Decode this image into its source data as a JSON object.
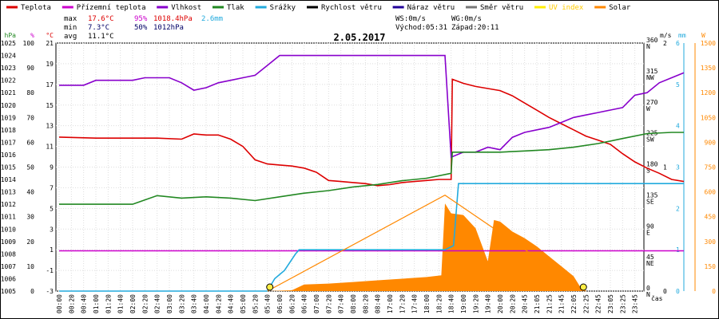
{
  "legend": [
    {
      "label": "Teplota",
      "color": "#dd0000"
    },
    {
      "label": "Přízemní teplota",
      "color": "#cc00cc"
    },
    {
      "label": "Vlhkost",
      "color": "#8800cc"
    },
    {
      "label": "Tlak",
      "color": "#228822"
    },
    {
      "label": "Srážky",
      "color": "#22aadd"
    },
    {
      "label": "Rychlost větru",
      "color": "#000000"
    },
    {
      "label": "Náraz větru",
      "color": "#220099"
    },
    {
      "label": "Směr větru",
      "color": "#777777"
    },
    {
      "label": "UV index",
      "color": "#ffee00"
    },
    {
      "label": "Solar",
      "color": "#ff8800"
    }
  ],
  "stats": {
    "max": {
      "label": "max",
      "temp": "17.6°C",
      "hum": "95%",
      "press": "1018.4hPa",
      "rain": "2.6mm"
    },
    "min": {
      "label": "min",
      "temp": "7.3°C",
      "hum": "50%",
      "press": "1012hPa"
    },
    "avg": {
      "label": "avg",
      "temp": "11.1°C"
    }
  },
  "wind_info": {
    "ws": "WS:0m/s",
    "wg": "WG:0m/s",
    "sunrise": "Východ:05:31",
    "sunset": "Západ:20:11"
  },
  "chart_data": {
    "type": "line",
    "title": "2.05.2017",
    "x_unit_label": "čas",
    "x_ticks": [
      "00:00",
      "00:20",
      "00:40",
      "01:00",
      "01:20",
      "01:40",
      "02:00",
      "02:20",
      "02:40",
      "03:00",
      "03:20",
      "03:40",
      "04:00",
      "04:20",
      "04:40",
      "05:00",
      "05:20",
      "05:40",
      "06:00",
      "06:20",
      "06:40",
      "07:00",
      "07:20",
      "07:40",
      "08:00",
      "08:20",
      "08:40",
      "17:00",
      "17:20",
      "17:40",
      "18:00",
      "18:20",
      "18:40",
      "19:00",
      "19:20",
      "19:40",
      "20:00",
      "20:20",
      "20:45",
      "21:05",
      "21:25",
      "21:45",
      "22:05",
      "22:25",
      "22:45",
      "23:05",
      "23:25",
      "23:45"
    ],
    "axes": {
      "pressure": {
        "unit": "hPa",
        "min": 1005,
        "max": 1025,
        "ticks": [
          1005,
          1006,
          1007,
          1008,
          1009,
          1010,
          1011,
          1012,
          1013,
          1014,
          1015,
          1016,
          1017,
          1018,
          1019,
          1020,
          1021,
          1022,
          1023,
          1024,
          1025
        ],
        "color": "#228822"
      },
      "humidity": {
        "unit": "%",
        "min": 0,
        "max": 100,
        "ticks": [
          0,
          10,
          20,
          30,
          40,
          50,
          60,
          70,
          80,
          90,
          100
        ],
        "color": "#cc00cc"
      },
      "temperature": {
        "unit": "°C",
        "min": -3,
        "max": 21,
        "ticks": [
          -3,
          -1,
          1,
          3,
          5,
          7,
          9,
          11,
          13,
          15,
          17,
          19,
          21
        ],
        "color": "#dd0000"
      },
      "wind_direction": {
        "ticks": [
          "0 N",
          "45 NE",
          "90 E",
          "135 SE",
          "180 S",
          "225 SW",
          "270 W",
          "315 NW",
          "360 N"
        ]
      },
      "wind_speed": {
        "unit": "m/s",
        "min": 0,
        "max": 2,
        "ticks": [
          0,
          1,
          2
        ]
      },
      "rain": {
        "unit": "mm",
        "min": 0,
        "max": 6,
        "ticks": [
          0,
          1,
          2,
          3,
          4,
          5,
          6
        ],
        "color": "#22aadd"
      },
      "solar": {
        "unit": "W",
        "min": 0,
        "max": 1500,
        "ticks": [
          0,
          150,
          300,
          450,
          600,
          750,
          900,
          1050,
          1200,
          1350,
          1500
        ],
        "color": "#ff8800"
      }
    },
    "series": [
      {
        "name": "Teplota",
        "axis": "temperature",
        "color": "#dd0000",
        "points": [
          [
            0,
            11.9
          ],
          [
            3,
            11.8
          ],
          [
            6,
            11.8
          ],
          [
            8,
            11.8
          ],
          [
            10,
            11.7
          ],
          [
            11,
            12.2
          ],
          [
            12,
            12.1
          ],
          [
            13,
            12.1
          ],
          [
            14,
            11.7
          ],
          [
            15,
            11.0
          ],
          [
            16,
            9.7
          ],
          [
            17,
            9.3
          ],
          [
            18,
            9.2
          ],
          [
            19,
            9.1
          ],
          [
            20,
            8.9
          ],
          [
            21,
            8.5
          ],
          [
            22,
            7.7
          ],
          [
            23,
            7.6
          ],
          [
            24,
            7.5
          ],
          [
            25,
            7.4
          ],
          [
            26,
            7.2
          ],
          [
            27,
            7.3
          ],
          [
            28,
            7.5
          ],
          [
            29,
            7.6
          ],
          [
            30,
            7.7
          ],
          [
            31,
            7.8
          ],
          [
            32,
            7.8
          ],
          [
            32.1,
            17.5
          ],
          [
            33,
            17.1
          ],
          [
            34,
            16.8
          ],
          [
            35,
            16.6
          ],
          [
            36,
            16.4
          ],
          [
            37,
            15.9
          ],
          [
            38,
            15.2
          ],
          [
            39,
            14.5
          ],
          [
            40,
            13.8
          ],
          [
            41,
            13.2
          ],
          [
            42,
            12.6
          ],
          [
            43,
            12.0
          ],
          [
            44,
            11.6
          ],
          [
            45,
            11.2
          ],
          [
            46,
            10.3
          ],
          [
            47,
            9.5
          ],
          [
            48,
            8.9
          ],
          [
            49,
            8.4
          ],
          [
            50,
            7.8
          ],
          [
            51,
            7.6
          ]
        ]
      },
      {
        "name": "Přízemní teplota",
        "axis": "temperature",
        "color": "#cc00cc",
        "points": [
          [
            0,
            0.9
          ],
          [
            51,
            0.9
          ]
        ]
      },
      {
        "name": "Vlhkost",
        "axis": "humidity",
        "color": "#8800cc",
        "points": [
          [
            0,
            83
          ],
          [
            2,
            83
          ],
          [
            3,
            85
          ],
          [
            5,
            85
          ],
          [
            6,
            85
          ],
          [
            7,
            86
          ],
          [
            8,
            86
          ],
          [
            9,
            86
          ],
          [
            10,
            84
          ],
          [
            11,
            81
          ],
          [
            12,
            82
          ],
          [
            13,
            84
          ],
          [
            14,
            85
          ],
          [
            15,
            86
          ],
          [
            16,
            87
          ],
          [
            17,
            91
          ],
          [
            18,
            95
          ],
          [
            19,
            95
          ],
          [
            20,
            95
          ],
          [
            21,
            95
          ],
          [
            22,
            95
          ],
          [
            23,
            95
          ],
          [
            24,
            95
          ],
          [
            25,
            95
          ],
          [
            26,
            95
          ],
          [
            27,
            95
          ],
          [
            28,
            95
          ],
          [
            29,
            95
          ],
          [
            30,
            95
          ],
          [
            31,
            95
          ],
          [
            31.5,
            95
          ],
          [
            32,
            54
          ],
          [
            33,
            56
          ],
          [
            34,
            56
          ],
          [
            35,
            58
          ],
          [
            36,
            57
          ],
          [
            37,
            62
          ],
          [
            38,
            64
          ],
          [
            39,
            65
          ],
          [
            40,
            66
          ],
          [
            41,
            68
          ],
          [
            42,
            70
          ],
          [
            43,
            71
          ],
          [
            44,
            72
          ],
          [
            45,
            73
          ],
          [
            46,
            74
          ],
          [
            47,
            79
          ],
          [
            48,
            80
          ],
          [
            49,
            84
          ],
          [
            50,
            86
          ],
          [
            51,
            88
          ]
        ]
      },
      {
        "name": "Tlak",
        "axis": "pressure",
        "color": "#228822",
        "points": [
          [
            0,
            1012
          ],
          [
            2,
            1012
          ],
          [
            4,
            1012
          ],
          [
            6,
            1012
          ],
          [
            8,
            1012.7
          ],
          [
            10,
            1012.5
          ],
          [
            12,
            1012.6
          ],
          [
            14,
            1012.5
          ],
          [
            16,
            1012.3
          ],
          [
            18,
            1012.6
          ],
          [
            20,
            1012.9
          ],
          [
            22,
            1013.1
          ],
          [
            24,
            1013.4
          ],
          [
            26,
            1013.6
          ],
          [
            28,
            1013.9
          ],
          [
            30,
            1014.1
          ],
          [
            32,
            1014.5
          ],
          [
            32.1,
            1016.2
          ],
          [
            34,
            1016.2
          ],
          [
            36,
            1016.2
          ],
          [
            38,
            1016.3
          ],
          [
            40,
            1016.4
          ],
          [
            42,
            1016.6
          ],
          [
            44,
            1016.9
          ],
          [
            46,
            1017.3
          ],
          [
            48,
            1017.7
          ],
          [
            50,
            1017.8
          ],
          [
            51,
            1017.8
          ]
        ]
      },
      {
        "name": "Srážky",
        "axis": "rain",
        "color": "#22aadd",
        "points": [
          [
            0,
            0
          ],
          [
            17,
            0
          ],
          [
            17.6,
            0.3
          ],
          [
            18.4,
            0.5
          ],
          [
            19.3,
            0.9
          ],
          [
            19.6,
            1.0
          ],
          [
            31.5,
            1.0
          ],
          [
            32.2,
            1.1
          ],
          [
            32.6,
            2.6
          ],
          [
            51,
            2.6
          ]
        ]
      },
      {
        "name": "Solar",
        "axis": "solar",
        "color": "#ff8800",
        "points": [
          [
            17,
            0
          ],
          [
            19,
            5
          ],
          [
            20,
            40
          ],
          [
            22,
            45
          ],
          [
            24,
            55
          ],
          [
            26,
            65
          ],
          [
            28,
            75
          ],
          [
            30,
            85
          ],
          [
            31.2,
            95
          ],
          [
            31.5,
            530
          ],
          [
            32,
            470
          ],
          [
            33,
            460
          ],
          [
            34,
            380
          ],
          [
            35,
            180
          ],
          [
            35.5,
            430
          ],
          [
            36,
            420
          ],
          [
            37,
            360
          ],
          [
            38,
            320
          ],
          [
            39,
            270
          ],
          [
            40,
            210
          ],
          [
            41,
            150
          ],
          [
            42,
            90
          ],
          [
            42.5,
            30
          ],
          [
            43,
            0
          ]
        ]
      },
      {
        "name": "Solar max",
        "axis": "solar",
        "color": "#ff8800",
        "points": [
          [
            17,
            0
          ],
          [
            31.5,
            580
          ],
          [
            43,
            0
          ]
        ]
      }
    ],
    "uv_index_markers": [
      17.2,
      42.8
    ]
  }
}
